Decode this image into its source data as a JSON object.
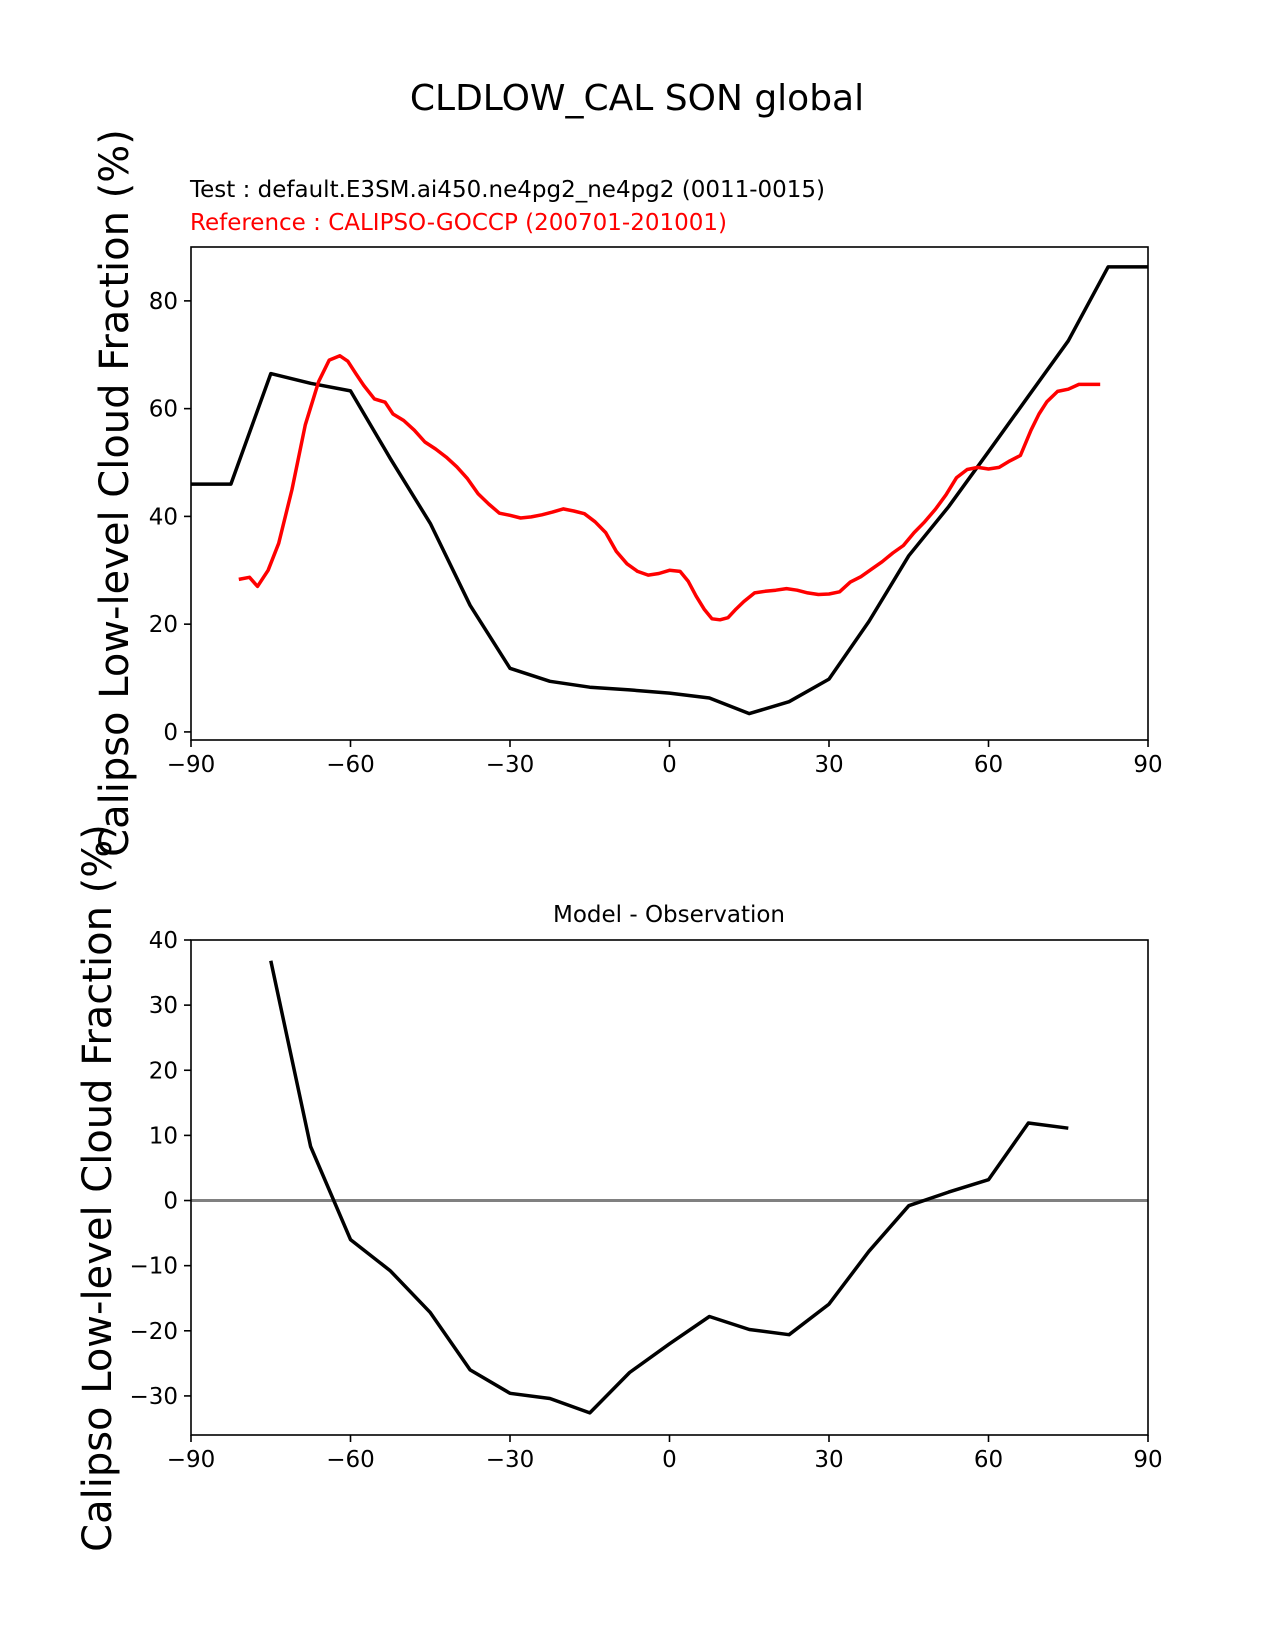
{
  "figure": {
    "title": "CLDLOW_CAL SON global"
  },
  "chart_data": [
    {
      "type": "line",
      "test_label": "Test : default.E3SM.ai450.ne4pg2_ne4pg2 (0011-0015)",
      "reference_label": "Reference : CALIPSO-GOCCP (200701-201001)",
      "ylabel": "Calipso Low-level Cloud Fraction (%)",
      "xlabel": "",
      "xlim": [
        -90,
        90
      ],
      "ylim": [
        -1.5,
        90
      ],
      "xticks": [
        -90,
        -60,
        -30,
        0,
        30,
        60,
        90
      ],
      "yticks": [
        0,
        20,
        40,
        60,
        80
      ],
      "xtick_labels": [
        "−90",
        "−60",
        "−30",
        "0",
        "30",
        "60",
        "90"
      ],
      "ytick_labels": [
        "0",
        "20",
        "40",
        "60",
        "80"
      ],
      "series": [
        {
          "role": "test",
          "color": "#000000",
          "x": [
            -90,
            -82.5,
            -75,
            -67.5,
            -60,
            -52.5,
            -45,
            -37.5,
            -30,
            -22.5,
            -15,
            -7.5,
            0,
            7.5,
            15,
            22.5,
            30,
            37.5,
            45,
            52.5,
            60,
            67.5,
            75,
            82.5,
            90
          ],
          "y": [
            46,
            46,
            66.5,
            64.7,
            63.3,
            50.7,
            38.7,
            23.5,
            11.8,
            9.4,
            8.3,
            7.8,
            7.2,
            6.3,
            3.4,
            5.6,
            9.8,
            20.5,
            32.7,
            41.8,
            52,
            62.3,
            72.6,
            86.3,
            86.3
          ]
        },
        {
          "role": "reference",
          "color": "#ff0000",
          "x": [
            -81,
            -79,
            -77.5,
            -75.5,
            -73.5,
            -71,
            -68.5,
            -66,
            -64,
            -62,
            -60.5,
            -59,
            -57.5,
            -55.5,
            -53.5,
            -52,
            -50,
            -48,
            -46,
            -44,
            -42,
            -40,
            -38,
            -36,
            -34,
            -32,
            -30,
            -28,
            -26,
            -24,
            -22,
            -20,
            -18,
            -16,
            -14,
            -12,
            -10,
            -8,
            -6,
            -4,
            -2,
            0,
            2,
            3.5,
            5,
            6.5,
            8,
            9.5,
            11,
            12.5,
            14,
            16,
            18,
            20,
            22,
            24,
            26,
            28,
            30,
            32,
            34,
            36,
            38,
            40,
            42,
            44,
            46,
            48,
            50,
            52,
            54,
            56,
            58,
            60,
            62,
            64,
            66,
            68,
            69.5,
            71,
            73,
            75,
            77,
            79,
            81
          ],
          "y": [
            28.3,
            28.7,
            27,
            30,
            35,
            45,
            57,
            65,
            69,
            69.8,
            68.8,
            66.5,
            64.3,
            61.8,
            61.2,
            59,
            57.8,
            56,
            53.8,
            52.5,
            51,
            49.2,
            47,
            44.2,
            42.3,
            40.6,
            40.2,
            39.7,
            39.9,
            40.3,
            40.8,
            41.4,
            41,
            40.5,
            39,
            37,
            33.5,
            31.2,
            29.8,
            29.1,
            29.4,
            30,
            29.8,
            28,
            25.2,
            22.8,
            21,
            20.8,
            21.2,
            22.8,
            24.2,
            25.8,
            26.1,
            26.3,
            26.6,
            26.3,
            25.8,
            25.5,
            25.6,
            26,
            27.8,
            28.8,
            30.2,
            31.6,
            33.2,
            34.6,
            37,
            39,
            41.3,
            44,
            47.2,
            48.7,
            49.1,
            48.8,
            49.1,
            50.3,
            51.3,
            56,
            59,
            61.3,
            63.2,
            63.6,
            64.5,
            64.5,
            64.5
          ]
        }
      ]
    },
    {
      "type": "line",
      "title": "Model - Observation",
      "ylabel": "Calipso Low-level Cloud Fraction (%)",
      "xlabel": "",
      "xlim": [
        -90,
        90
      ],
      "ylim": [
        -36,
        40
      ],
      "xticks": [
        -90,
        -60,
        -30,
        0,
        30,
        60,
        90
      ],
      "yticks": [
        -30,
        -20,
        -10,
        0,
        10,
        20,
        30,
        40
      ],
      "xtick_labels": [
        "−90",
        "−60",
        "−30",
        "0",
        "30",
        "60",
        "90"
      ],
      "ytick_labels": [
        "−30",
        "−20",
        "−10",
        "0",
        "10",
        "20",
        "30",
        "40"
      ],
      "zero_line": {
        "y": 0,
        "color": "#808080"
      },
      "series": [
        {
          "role": "difference",
          "color": "#000000",
          "x": [
            -75,
            -67.5,
            -60,
            -52.5,
            -45,
            -37.5,
            -30,
            -22.5,
            -15,
            -7.5,
            0,
            7.5,
            15,
            22.5,
            30,
            37.5,
            45,
            52.5,
            60,
            67.5,
            75
          ],
          "y": [
            36.8,
            8.3,
            -6,
            -10.8,
            -17.2,
            -26,
            -29.6,
            -30.4,
            -32.6,
            -26.4,
            -22,
            -17.8,
            -19.8,
            -20.6,
            -15.9,
            -7.8,
            -0.8,
            1.3,
            3.2,
            11.9,
            11.1
          ]
        }
      ]
    }
  ]
}
